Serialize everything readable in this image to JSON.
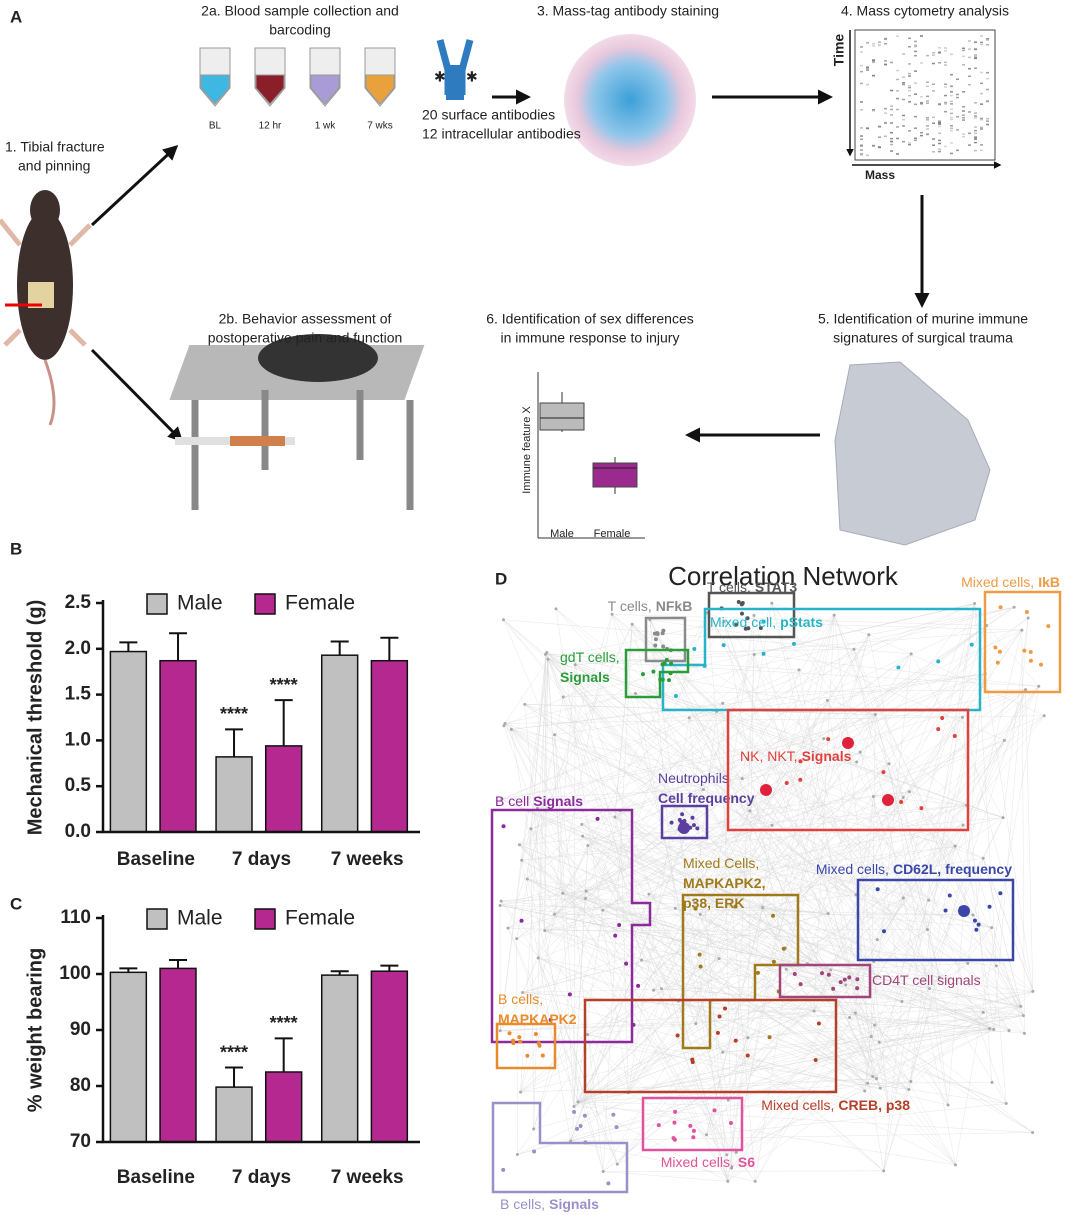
{
  "panel_labels": [
    "A",
    "B",
    "C",
    "D"
  ],
  "workflow": {
    "step1": [
      "1. Tibial fracture",
      "and pinning"
    ],
    "step2a": [
      "2a. Blood sample collection and",
      "barcoding"
    ],
    "timepoints": [
      "BL",
      "12 hr",
      "1 wk",
      "7 wks"
    ],
    "antibodies": [
      "20 surface antibodies",
      "12 intracellular antibodies"
    ],
    "step3": [
      "3. Mass-tag antibody staining"
    ],
    "step4": [
      "4. Mass cytometry analysis"
    ],
    "cytometry_axes": [
      "Time",
      "Mass"
    ],
    "step2b": [
      "2b. Behavior assessment of",
      "postoperative pain and function"
    ],
    "step6": [
      "6. Identification of sex differences",
      "in immune response to injury"
    ],
    "step5": [
      "5. Identification of murine immune",
      "signatures of surgical trauma"
    ],
    "boxplot": {
      "ylabel": "Immune feature X",
      "categories": [
        "Male",
        "Female"
      ]
    }
  },
  "chart_data": [
    {
      "type": "bar",
      "ylabel": "Mechanical threshold (g)",
      "categories": [
        "Baseline",
        "7 days",
        "7 weeks"
      ],
      "series": [
        {
          "name": "Male",
          "color": "#c0c0c0",
          "values": [
            1.97,
            0.82,
            1.93
          ],
          "errors": [
            0.1,
            0.3,
            0.15
          ],
          "annotations": [
            null,
            "****",
            null
          ]
        },
        {
          "name": "Female",
          "color": "#b5288f",
          "values": [
            1.87,
            0.94,
            1.87
          ],
          "errors": [
            0.3,
            0.5,
            0.25
          ],
          "annotations": [
            null,
            "****",
            null
          ]
        }
      ],
      "ylim": [
        0,
        2.5
      ],
      "yticks": [
        {
          "value": 0,
          "label": "0.0"
        },
        0.5,
        {
          "value": 1,
          "label": "1.0"
        },
        1.5,
        {
          "value": 2,
          "label": "2.0"
        },
        2.5
      ],
      "legend": "top"
    },
    {
      "type": "bar",
      "ylabel": "% weight bearing",
      "categories": [
        "Baseline",
        "7 days",
        "7 weeks"
      ],
      "series": [
        {
          "name": "Male",
          "color": "#c0c0c0",
          "values": [
            100.3,
            79.8,
            99.8
          ],
          "errors": [
            0.7,
            3.5,
            0.7
          ],
          "annotations": [
            null,
            "****",
            null
          ]
        },
        {
          "name": "Female",
          "color": "#b5288f",
          "values": [
            101,
            82.5,
            100.5
          ],
          "errors": [
            1.5,
            6,
            1
          ],
          "annotations": [
            null,
            "****",
            null
          ]
        }
      ],
      "ylim": [
        70,
        110
      ],
      "yticks": [
        70,
        80,
        90,
        100,
        110
      ],
      "legend": "top"
    }
  ],
  "network": {
    "title": "Correlation Network",
    "groups": [
      {
        "color": "#555555",
        "lines": [
          [
            {
              "text": "T cells,"
            },
            {
              "text": "STAT3",
              "bold": true
            }
          ]
        ]
      },
      {
        "color": "#8a8a8a",
        "lines": [
          [
            {
              "text": "T cells,"
            },
            {
              "text": "NFkB",
              "bold": true
            }
          ]
        ]
      },
      {
        "color": "#27b4c8",
        "lines": [
          [
            {
              "text": "Mixed cell,"
            },
            {
              "text": "pStats",
              "bold": true
            }
          ]
        ]
      },
      {
        "color": "#ef9a45",
        "lines": [
          [
            {
              "text": "Mixed cells,"
            },
            {
              "text": "IkB",
              "bold": true
            }
          ]
        ]
      },
      {
        "color": "#2a9d3a",
        "lines": [
          [
            {
              "text": "gdT cells,"
            }
          ],
          [
            {
              "text": "Signals",
              "bold": true
            }
          ]
        ]
      },
      {
        "color": "#5b3fa0",
        "lines": [
          [
            {
              "text": "Neutrophils"
            }
          ],
          [
            {
              "text": "Cell frequency",
              "bold": true
            }
          ]
        ]
      },
      {
        "color": "#e0413c",
        "lines": [
          [
            {
              "text": "NK, NKT,"
            },
            {
              "text": "Signals",
              "bold": true
            }
          ]
        ]
      },
      {
        "color": "#8b2a9b",
        "lines": [
          [
            {
              "text": "B cell"
            },
            {
              "text": "Signals",
              "bold": true
            }
          ]
        ]
      },
      {
        "color": "#a07a1a",
        "lines": [
          [
            {
              "text": "Mixed Cells,"
            }
          ],
          [
            {
              "text": "MAPKAPK2,",
              "bold": true
            }
          ],
          [
            {
              "text": "p38, ERK",
              "bold": true
            }
          ]
        ]
      },
      {
        "color": "#3a47a8",
        "lines": [
          [
            {
              "text": "Mixed cells,"
            },
            {
              "text": "CD62L, frequency",
              "bold": true
            }
          ]
        ]
      },
      {
        "color": "#a0467a",
        "lines": [
          [
            {
              "text": "CD4T cell signals"
            }
          ]
        ]
      },
      {
        "color": "#e88b2a",
        "lines": [
          [
            {
              "text": "B cells,"
            }
          ],
          [
            {
              "text": "MAPKAPK2",
              "bold": true
            }
          ]
        ]
      },
      {
        "color": "#b5402a",
        "lines": [
          [
            {
              "text": "Mixed cells,"
            },
            {
              "text": "CREB, p38",
              "bold": true
            }
          ]
        ]
      },
      {
        "color": "#e0529b",
        "lines": [
          [
            {
              "text": "Mixed cells,"
            },
            {
              "text": "S6",
              "bold": true
            }
          ]
        ]
      },
      {
        "color": "#9b8fc8",
        "lines": [
          [
            {
              "text": "B cells,"
            },
            {
              "text": "Signals",
              "bold": true
            }
          ]
        ]
      }
    ]
  }
}
